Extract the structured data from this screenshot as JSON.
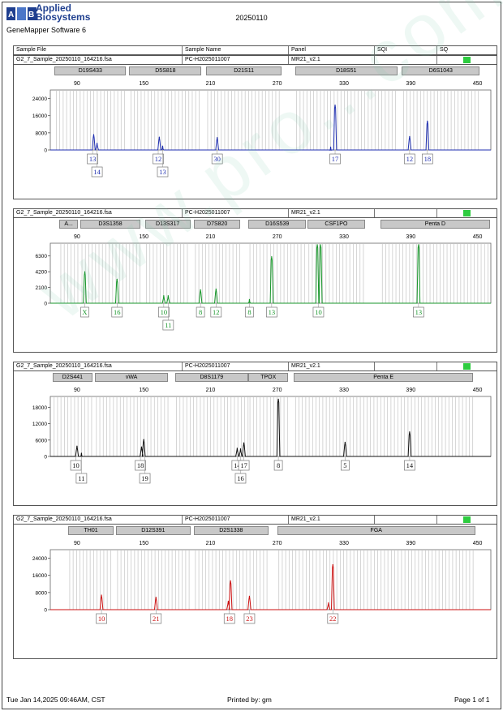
{
  "header": {
    "brand_line1": "Applied",
    "brand_line2": "Biosystems",
    "software": "GeneMapper Software 6",
    "date": "20250110"
  },
  "columns": {
    "sample_file": "Sample File",
    "sample_name": "Sample Name",
    "panel": "Panel",
    "sqi": "SQI",
    "sq": "SQ"
  },
  "panels": [
    {
      "sample_file": "G2_7_Sample_20250110_164216.fsa",
      "sample_name": "PC-H2025011007",
      "panel": "MR21_v2.1",
      "sq_color": "#2ecc40",
      "color": "#1f2fb0",
      "loci": [
        {
          "name": "D19S433",
          "start": 70,
          "end": 134
        },
        {
          "name": "D5S818",
          "start": 137,
          "end": 202
        },
        {
          "name": "D21S11",
          "start": 206,
          "end": 274
        },
        {
          "name": "D18S51",
          "start": 286,
          "end": 378
        },
        {
          "name": "D6S1043",
          "start": 382,
          "end": 452
        }
      ],
      "y_ticks": [
        "24000",
        "16000",
        "8000",
        "0"
      ],
      "y_max": 28000,
      "peaks": [
        {
          "x": 105,
          "h": 7200
        },
        {
          "x": 108,
          "h": 3200
        },
        {
          "x": 164,
          "h": 6000
        },
        {
          "x": 167,
          "h": 1800
        },
        {
          "x": 216,
          "h": 5800
        },
        {
          "x": 318,
          "h": 1400
        },
        {
          "x": 322,
          "h": 21000
        },
        {
          "x": 389,
          "h": 6300
        },
        {
          "x": 405,
          "h": 13500
        }
      ],
      "alleles": [
        {
          "x": 104,
          "row": 1,
          "label": "13"
        },
        {
          "x": 108,
          "row": 2,
          "label": "14"
        },
        {
          "x": 163,
          "row": 1,
          "label": "12"
        },
        {
          "x": 167,
          "row": 2,
          "label": "13"
        },
        {
          "x": 216,
          "row": 1,
          "label": "30"
        },
        {
          "x": 322,
          "row": 1,
          "label": "17"
        },
        {
          "x": 389,
          "row": 1,
          "label": "12"
        },
        {
          "x": 405,
          "row": 1,
          "label": "18"
        }
      ]
    },
    {
      "sample_file": "G2_7_Sample_20250110_164216.fsa",
      "sample_name": "PC-H2025011007",
      "panel": "MR21_v2.1",
      "sq_color": "#2ecc40",
      "color": "#17962a",
      "loci": [
        {
          "name": "A...",
          "start": 74,
          "end": 91
        },
        {
          "name": "D3S1358",
          "start": 93,
          "end": 147
        },
        {
          "name": "D13S317",
          "start": 151,
          "end": 192
        },
        {
          "name": "D7S820",
          "start": 195,
          "end": 237
        },
        {
          "name": "D16S539",
          "start": 244,
          "end": 296
        },
        {
          "name": "CSF1PO",
          "start": 297,
          "end": 349
        },
        {
          "name": "Penta D",
          "start": 363,
          "end": 461
        }
      ],
      "y_ticks": [
        "6300",
        "4200",
        "2100",
        "0"
      ],
      "y_max": 8000,
      "peaks": [
        {
          "x": 97,
          "h": 4200
        },
        {
          "x": 126,
          "h": 3200
        },
        {
          "x": 168,
          "h": 1000
        },
        {
          "x": 172,
          "h": 1000
        },
        {
          "x": 201,
          "h": 1800
        },
        {
          "x": 215,
          "h": 1900
        },
        {
          "x": 245,
          "h": 500
        },
        {
          "x": 265,
          "h": 6200
        },
        {
          "x": 306,
          "h": 7800
        },
        {
          "x": 309,
          "h": 7800
        },
        {
          "x": 397,
          "h": 7800
        }
      ],
      "alleles": [
        {
          "x": 97,
          "row": 1,
          "label": "X"
        },
        {
          "x": 126,
          "row": 1,
          "label": "16"
        },
        {
          "x": 168,
          "row": 1,
          "label": "10"
        },
        {
          "x": 172,
          "row": 2,
          "label": "11"
        },
        {
          "x": 201,
          "row": 1,
          "label": "8"
        },
        {
          "x": 215,
          "row": 1,
          "label": "12"
        },
        {
          "x": 245,
          "row": 1,
          "label": "8"
        },
        {
          "x": 265,
          "row": 1,
          "label": "13"
        },
        {
          "x": 307,
          "row": 1,
          "label": "10"
        },
        {
          "x": 397,
          "row": 1,
          "label": "13"
        }
      ]
    },
    {
      "sample_file": "G2_7_Sample_20250110_164216.fsa",
      "sample_name": "PC-H2025011007",
      "panel": "MR21_v2.1",
      "sq_color": "#2ecc40",
      "color": "#111111",
      "loci": [
        {
          "name": "D2S441",
          "start": 68,
          "end": 104
        },
        {
          "name": "vWA",
          "start": 106,
          "end": 172
        },
        {
          "name": "D8S1179",
          "start": 178,
          "end": 244
        },
        {
          "name": "TPOX",
          "start": 244,
          "end": 280
        },
        {
          "name": "Penta E",
          "start": 285,
          "end": 446
        }
      ],
      "y_ticks": [
        "18000",
        "12000",
        "6000",
        "0"
      ],
      "y_max": 22000,
      "peaks": [
        {
          "x": 90,
          "h": 3800
        },
        {
          "x": 94,
          "h": 1200
        },
        {
          "x": 148,
          "h": 3500
        },
        {
          "x": 150,
          "h": 6200
        },
        {
          "x": 234,
          "h": 3000
        },
        {
          "x": 237,
          "h": 2800
        },
        {
          "x": 240,
          "h": 5000
        },
        {
          "x": 271,
          "h": 21000
        },
        {
          "x": 331,
          "h": 5200
        },
        {
          "x": 389,
          "h": 9000
        }
      ],
      "alleles": [
        {
          "x": 89,
          "row": 1,
          "label": "10"
        },
        {
          "x": 94,
          "row": 2,
          "label": "11"
        },
        {
          "x": 147,
          "row": 1,
          "label": "18"
        },
        {
          "x": 151,
          "row": 2,
          "label": "19"
        },
        {
          "x": 234,
          "row": 1,
          "label": "14"
        },
        {
          "x": 237,
          "row": 2,
          "label": "16"
        },
        {
          "x": 240,
          "row": 1,
          "label": "17"
        },
        {
          "x": 271,
          "row": 1,
          "label": "8"
        },
        {
          "x": 331,
          "row": 1,
          "label": "5"
        },
        {
          "x": 389,
          "row": 1,
          "label": "14"
        }
      ]
    },
    {
      "sample_file": "G2_7_Sample_20250110_164216.fsa",
      "sample_name": "PC-H2025011007",
      "panel": "MR21_v2.1",
      "sq_color": "#2ecc40",
      "color": "#cc1111",
      "loci": [
        {
          "name": "TH01",
          "start": 82,
          "end": 123
        },
        {
          "name": "D12S391",
          "start": 125,
          "end": 192
        },
        {
          "name": "D2S1338",
          "start": 195,
          "end": 262
        },
        {
          "name": "FGA",
          "start": 270,
          "end": 448
        }
      ],
      "y_ticks": [
        "24000",
        "16000",
        "8000",
        "0"
      ],
      "y_max": 28000,
      "peaks": [
        {
          "x": 112,
          "h": 6800
        },
        {
          "x": 161,
          "h": 5800
        },
        {
          "x": 226,
          "h": 4000
        },
        {
          "x": 228,
          "h": 13500
        },
        {
          "x": 245,
          "h": 6300
        },
        {
          "x": 316,
          "h": 3200
        },
        {
          "x": 320,
          "h": 21000
        }
      ],
      "alleles": [
        {
          "x": 112,
          "row": 1,
          "label": "10"
        },
        {
          "x": 161,
          "row": 1,
          "label": "21"
        },
        {
          "x": 227,
          "row": 1,
          "label": "18"
        },
        {
          "x": 245,
          "row": 1,
          "label": "23"
        },
        {
          "x": 320,
          "row": 1,
          "label": "22"
        }
      ]
    }
  ],
  "x_ticks": [
    "90",
    "150",
    "210",
    "270",
    "330",
    "390",
    "450"
  ],
  "footer": {
    "timestamp": "Tue Jan 14,2025 09:46AM, CST",
    "printed_by": "Printed by: gm",
    "page": "Page 1 of 1"
  }
}
